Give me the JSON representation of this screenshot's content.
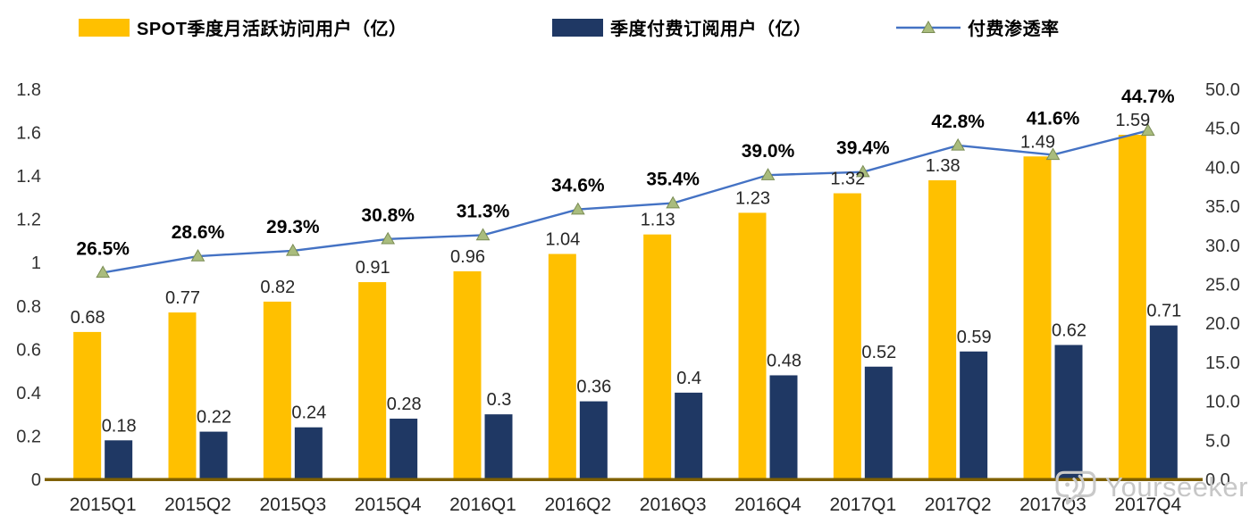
{
  "legend": {
    "items": [
      {
        "label": "SPOT季度月活跃访问用户（亿）",
        "color": "#FFC000",
        "type": "bar"
      },
      {
        "label": "季度付费订阅用户（亿）",
        "color": "#1F3864",
        "type": "bar"
      },
      {
        "label": "付费渗透率",
        "color": "#4472C4",
        "type": "line"
      }
    ]
  },
  "watermark": {
    "text": "Yourseeker"
  },
  "chart_data": {
    "type": "bar",
    "subtype": "combo-bar-line-dual-axis",
    "categories": [
      "2015Q1",
      "2015Q2",
      "2015Q3",
      "2015Q4",
      "2016Q1",
      "2016Q2",
      "2016Q3",
      "2016Q4",
      "2017Q1",
      "2017Q2",
      "2017Q3",
      "2017Q4"
    ],
    "series": [
      {
        "name": "SPOT季度月活跃访问用户（亿）",
        "type": "bar",
        "axis": "left",
        "color": "#FFC000",
        "values": [
          0.68,
          0.77,
          0.82,
          0.91,
          0.96,
          1.04,
          1.13,
          1.23,
          1.32,
          1.38,
          1.49,
          1.59
        ],
        "labels": [
          "0.68",
          "0.77",
          "0.82",
          "0.91",
          "0.96",
          "1.04",
          "1.13",
          "1.23",
          "1.32",
          "1.38",
          "1.49",
          "1.59"
        ]
      },
      {
        "name": "季度付费订阅用户（亿）",
        "type": "bar",
        "axis": "left",
        "color": "#1F3864",
        "values": [
          0.18,
          0.22,
          0.24,
          0.28,
          0.3,
          0.36,
          0.4,
          0.48,
          0.52,
          0.59,
          0.62,
          0.71
        ],
        "labels": [
          "0.18",
          "0.22",
          "0.24",
          "0.28",
          "0.3",
          "0.36",
          "0.4",
          "0.48",
          "0.52",
          "0.59",
          "0.62",
          "0.71"
        ]
      },
      {
        "name": "付费渗透率",
        "type": "line",
        "axis": "right",
        "color": "#4472C4",
        "marker_color": "#A9BC7D",
        "marker_stroke": "#7A8C54",
        "values": [
          26.5,
          28.6,
          29.3,
          30.8,
          31.3,
          34.6,
          35.4,
          39.0,
          39.4,
          42.8,
          41.6,
          44.7
        ],
        "labels": [
          "26.5%",
          "28.6%",
          "29.3%",
          "30.8%",
          "31.3%",
          "34.6%",
          "35.4%",
          "39.0%",
          "39.4%",
          "42.8%",
          "41.6%",
          "44.7%"
        ]
      }
    ],
    "left_axis": {
      "min": 0,
      "max": 1.8,
      "step": 0.2,
      "tick_labels": [
        "0",
        "0.2",
        "0.4",
        "0.6",
        "0.8",
        "1",
        "1.2",
        "1.4",
        "1.6",
        "1.8"
      ]
    },
    "right_axis": {
      "min": 0,
      "max": 50,
      "step": 5,
      "unit": "%",
      "tick_labels": [
        "0.0",
        "5.0",
        "10.0",
        "15.0",
        "20.0",
        "25.0",
        "30.0",
        "35.0",
        "40.0",
        "45.0",
        "50.0"
      ]
    },
    "grid": false,
    "legend_position": "top",
    "axis_line_color": "#7F6000",
    "text_color": "#333333",
    "label_color": "#262626"
  }
}
